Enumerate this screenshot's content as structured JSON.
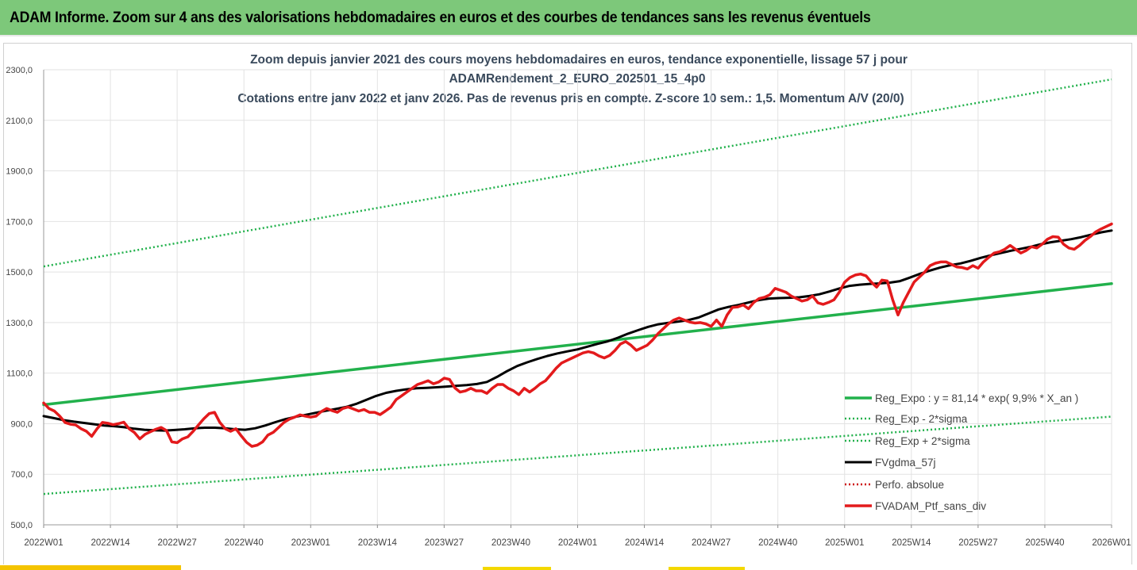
{
  "header": {
    "title": "ADAM Informe. Zoom sur 4 ans des valorisations hebdomadaires en euros et des courbes de tendances sans les revenus éventuels"
  },
  "colors": {
    "header_bg": "#7dc87a",
    "trend": "#22b14c",
    "band": "#22b14c",
    "gdma": "#000000",
    "perfo": "#cc0000",
    "ptf": "#e31a1c"
  },
  "chart_data": {
    "type": "line",
    "title_lines": [
      "Zoom depuis janvier 2021 des cours moyens hebdomadaires  en euros, tendance exponentielle, lissage 57 j pour",
      "ADAMRendement_2_EURO_202501_15_4p0",
      "Cotations entre janv 2022 et janv 2026. Pas de revenus pris en compte. Z-score 10 sem.: 1,5. Momentum A/V (20/0)"
    ],
    "y_axis": {
      "min": 500,
      "max": 2300,
      "step": 200,
      "tick_labels": [
        "500,0",
        "700,0",
        "900,0",
        "1100,0",
        "1300,0",
        "1500,0",
        "1700,0",
        "1900,0",
        "2100,0",
        "2300,0"
      ]
    },
    "x_axis": {
      "categories": [
        "2022W01",
        "2022W14",
        "2022W27",
        "2022W40",
        "2023W01",
        "2023W14",
        "2023W27",
        "2023W40",
        "2024W01",
        "2024W14",
        "2024W27",
        "2024W40",
        "2025W01",
        "2025W14",
        "2025W27",
        "2025W40",
        "2026W01"
      ]
    },
    "series": [
      {
        "name": "Reg_Expo : y = 81,14 * exp( 9,9% *  X_an )",
        "style": "solid-thick",
        "color": "#22b14c",
        "values": [
          975,
          1454
        ]
      },
      {
        "name": "Reg_Exp - 2*sigma",
        "style": "dotted",
        "color": "#22b14c",
        "values": [
          622,
          928
        ]
      },
      {
        "name": "Reg_Exp + 2*sigma",
        "style": "dotted",
        "color": "#22b14c",
        "values": [
          1522,
          2262
        ]
      },
      {
        "name": "FVgdma_57j",
        "style": "solid",
        "color": "#000000",
        "values": [
          930,
          922,
          914,
          908,
          903,
          898,
          893,
          890,
          886,
          880,
          876,
          874,
          873,
          875,
          878,
          882,
          884,
          884,
          882,
          878,
          876,
          882,
          893,
          906,
          918,
          927,
          935,
          943,
          951,
          958,
          966,
          978,
          994,
          1010,
          1022,
          1030,
          1036,
          1040,
          1042,
          1044,
          1047,
          1050,
          1053,
          1057,
          1065,
          1085,
          1108,
          1128,
          1143,
          1156,
          1168,
          1178,
          1186,
          1194,
          1205,
          1216,
          1226,
          1240,
          1256,
          1270,
          1283,
          1293,
          1299,
          1304,
          1310,
          1320,
          1336,
          1352,
          1362,
          1370,
          1380,
          1389,
          1395,
          1397,
          1398,
          1400,
          1405,
          1412,
          1423,
          1435,
          1445,
          1450,
          1453,
          1455,
          1458,
          1464,
          1478,
          1493,
          1506,
          1518,
          1527,
          1534,
          1544,
          1556,
          1566,
          1575,
          1584,
          1592,
          1600,
          1610,
          1618,
          1624,
          1630,
          1638,
          1648,
          1657,
          1664
        ]
      },
      {
        "name": "Perfo. absolue",
        "style": "dotted",
        "color": "#cc0000",
        "values": []
      },
      {
        "name": "FVADAM_Ptf_sans_div",
        "style": "solid-thick",
        "color": "#e31a1c",
        "values": [
          982,
          960,
          950,
          930,
          905,
          898,
          895,
          880,
          870,
          850,
          880,
          905,
          902,
          896,
          900,
          906,
          880,
          865,
          840,
          858,
          868,
          878,
          885,
          873,
          828,
          825,
          840,
          848,
          870,
          895,
          920,
          940,
          945,
          905,
          880,
          870,
          880,
          852,
          826,
          810,
          815,
          828,
          855,
          866,
          885,
          905,
          918,
          926,
          935,
          930,
          926,
          930,
          948,
          960,
          952,
          945,
          960,
          966,
          958,
          950,
          956,
          945,
          945,
          936,
          950,
          965,
          995,
          1010,
          1025,
          1040,
          1055,
          1062,
          1070,
          1058,
          1065,
          1080,
          1075,
          1042,
          1025,
          1030,
          1040,
          1030,
          1030,
          1020,
          1040,
          1055,
          1055,
          1040,
          1030,
          1015,
          1040,
          1025,
          1040,
          1058,
          1070,
          1095,
          1120,
          1140,
          1150,
          1160,
          1170,
          1180,
          1185,
          1180,
          1168,
          1160,
          1170,
          1190,
          1215,
          1225,
          1210,
          1190,
          1200,
          1210,
          1230,
          1255,
          1275,
          1295,
          1310,
          1318,
          1310,
          1302,
          1298,
          1300,
          1295,
          1285,
          1310,
          1285,
          1330,
          1360,
          1362,
          1370,
          1355,
          1380,
          1395,
          1400,
          1410,
          1435,
          1428,
          1420,
          1405,
          1395,
          1385,
          1390,
          1405,
          1378,
          1372,
          1380,
          1390,
          1420,
          1460,
          1478,
          1488,
          1492,
          1485,
          1460,
          1440,
          1468,
          1465,
          1390,
          1330,
          1380,
          1420,
          1460,
          1480,
          1500,
          1525,
          1535,
          1540,
          1540,
          1530,
          1520,
          1518,
          1512,
          1525,
          1515,
          1540,
          1558,
          1575,
          1580,
          1590,
          1605,
          1590,
          1575,
          1585,
          1600,
          1595,
          1610,
          1630,
          1640,
          1638,
          1610,
          1595,
          1590,
          1605,
          1625,
          1640,
          1658,
          1670,
          1680,
          1690
        ]
      }
    ]
  }
}
